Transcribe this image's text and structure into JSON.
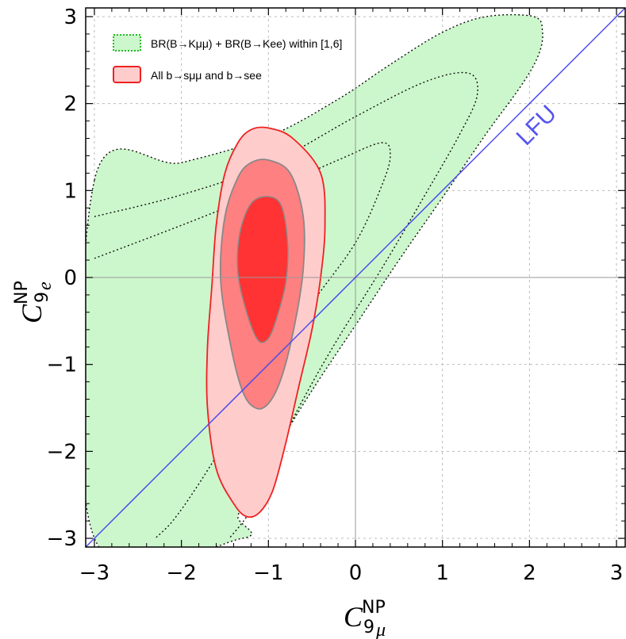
{
  "chart_data": {
    "type": "contour",
    "xlim": [
      -3.1,
      3.1
    ],
    "ylim": [
      -3.1,
      3.1
    ],
    "xticks": [
      -3,
      -2,
      -1,
      0,
      1,
      2,
      3
    ],
    "yticks": [
      -3,
      -2,
      -1,
      0,
      1,
      2,
      3
    ],
    "tick_labels": [
      "−3",
      "−2",
      "−1",
      "0",
      "1",
      "2",
      "3"
    ],
    "xlabel": {
      "symbol": "C",
      "sup": "NP",
      "sub_num": "9",
      "sub_idx": "μ"
    },
    "ylabel": {
      "symbol": "C",
      "sup": "NP",
      "sub_num": "9",
      "sub_idx": "e"
    },
    "grid": true,
    "legend": {
      "placement": "top-left",
      "entries": [
        {
          "name": "BR(B→Kμμ) + BR(B→Kee) within [1,6]",
          "style": "dotted-green-fill"
        },
        {
          "name": "All b→sμμ and b→see",
          "style": "red-fill"
        }
      ]
    },
    "line": {
      "name": "LFU",
      "x": [
        -3.1,
        3.1
      ],
      "y": [
        -3.1,
        3.1
      ]
    },
    "green_region": {
      "name": "BR(B→Kμμ) + BR(B→Kee) within [1,6]",
      "outer_boundary": [
        [
          -3.0,
          1.12
        ],
        [
          -2.0,
          1.32
        ],
        [
          -1.0,
          1.62
        ],
        [
          -0.2,
          2.05
        ],
        [
          0.4,
          2.45
        ],
        [
          1.0,
          2.82
        ],
        [
          1.5,
          3.0
        ],
        [
          2.05,
          3.0
        ],
        [
          2.15,
          2.82
        ],
        [
          2.1,
          2.55
        ],
        [
          1.9,
          2.2
        ],
        [
          1.5,
          1.65
        ],
        [
          1.0,
          0.92
        ],
        [
          0.5,
          0.2
        ],
        [
          0.0,
          -0.55
        ],
        [
          -0.5,
          -1.3
        ],
        [
          -0.9,
          -1.95
        ],
        [
          -1.2,
          -2.45
        ],
        [
          -1.35,
          -2.75
        ],
        [
          -1.3,
          -3.0
        ],
        [
          -3.0,
          -3.0
        ]
      ],
      "inner_contours": [
        [
          [
            -3.0,
            0.7
          ],
          [
            -2.0,
            0.95
          ],
          [
            -1.0,
            1.3
          ],
          [
            0.0,
            1.85
          ],
          [
            0.8,
            2.25
          ],
          [
            1.3,
            2.35
          ],
          [
            1.4,
            2.1
          ],
          [
            1.2,
            1.65
          ],
          [
            0.8,
            0.95
          ],
          [
            0.3,
            0.1
          ],
          [
            -0.2,
            -0.7
          ],
          [
            -0.6,
            -1.4
          ],
          [
            -0.9,
            -2.0
          ],
          [
            -1.1,
            -2.45
          ],
          [
            -1.25,
            -2.75
          ],
          [
            -1.45,
            -3.0
          ]
        ],
        [
          [
            -3.0,
            0.22
          ],
          [
            -2.0,
            0.6
          ],
          [
            -1.0,
            1.0
          ],
          [
            -0.2,
            1.35
          ],
          [
            0.3,
            1.55
          ],
          [
            0.4,
            1.4
          ],
          [
            0.3,
            1.05
          ],
          [
            0.0,
            0.4
          ],
          [
            -0.5,
            -0.3
          ],
          [
            -1.0,
            -1.1
          ],
          [
            -1.5,
            -1.9
          ],
          [
            -1.85,
            -2.45
          ],
          [
            -2.1,
            -2.8
          ],
          [
            -2.3,
            -3.0
          ]
        ]
      ]
    },
    "red_regions": [
      {
        "level": "3sigma",
        "boundary": [
          [
            -1.0,
            1.72
          ],
          [
            -0.72,
            1.6
          ],
          [
            -0.4,
            1.2
          ],
          [
            -0.35,
            0.6
          ],
          [
            -0.4,
            0.0
          ],
          [
            -0.5,
            -0.6
          ],
          [
            -0.65,
            -1.25
          ],
          [
            -0.8,
            -1.9
          ],
          [
            -0.95,
            -2.45
          ],
          [
            -1.1,
            -2.7
          ],
          [
            -1.25,
            -2.75
          ],
          [
            -1.4,
            -2.6
          ],
          [
            -1.6,
            -2.2
          ],
          [
            -1.7,
            -1.5
          ],
          [
            -1.7,
            -0.8
          ],
          [
            -1.65,
            -0.1
          ],
          [
            -1.6,
            0.6
          ],
          [
            -1.5,
            1.2
          ],
          [
            -1.35,
            1.55
          ],
          [
            -1.2,
            1.7
          ]
        ]
      },
      {
        "level": "2sigma",
        "boundary": [
          [
            -1.0,
            1.35
          ],
          [
            -0.75,
            1.2
          ],
          [
            -0.6,
            0.7
          ],
          [
            -0.6,
            0.1
          ],
          [
            -0.7,
            -0.55
          ],
          [
            -0.85,
            -1.15
          ],
          [
            -1.0,
            -1.45
          ],
          [
            -1.15,
            -1.5
          ],
          [
            -1.3,
            -1.3
          ],
          [
            -1.45,
            -0.7
          ],
          [
            -1.55,
            0.0
          ],
          [
            -1.5,
            0.7
          ],
          [
            -1.35,
            1.15
          ],
          [
            -1.2,
            1.32
          ]
        ]
      },
      {
        "level": "1sigma",
        "boundary": [
          [
            -1.0,
            0.93
          ],
          [
            -0.85,
            0.82
          ],
          [
            -0.78,
            0.4
          ],
          [
            -0.8,
            -0.05
          ],
          [
            -0.9,
            -0.45
          ],
          [
            -1.0,
            -0.7
          ],
          [
            -1.12,
            -0.72
          ],
          [
            -1.25,
            -0.4
          ],
          [
            -1.35,
            0.05
          ],
          [
            -1.33,
            0.5
          ],
          [
            -1.2,
            0.85
          ]
        ]
      }
    ]
  }
}
